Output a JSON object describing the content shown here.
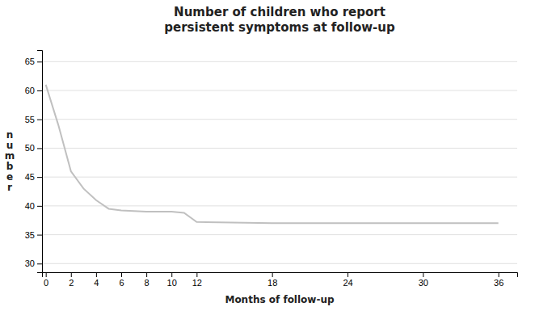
{
  "chart_data": {
    "type": "line",
    "title": "Number of children who report\npersistent symptoms at follow-up",
    "x_label": "Months of follow-up",
    "y_label": "n\nu\nm\nb\ne\nr",
    "x": [
      0,
      1,
      2,
      3,
      4,
      5,
      6,
      8,
      10,
      11,
      12,
      18,
      24,
      30,
      36
    ],
    "values": [
      61,
      54,
      46,
      43,
      41,
      39.5,
      39.2,
      39.0,
      39.0,
      38.8,
      37.2,
      37.0,
      37.0,
      37.0,
      37.0
    ],
    "color": "#c0c0c0",
    "xlim": [
      -0.3,
      37.5
    ],
    "ylim": [
      28.5,
      67
    ],
    "xticks": [
      0,
      2,
      4,
      6,
      8,
      10,
      12,
      18,
      24,
      30,
      36
    ],
    "yticks": [
      30,
      35,
      40,
      45,
      50,
      55,
      60,
      65
    ],
    "grid": "y"
  }
}
